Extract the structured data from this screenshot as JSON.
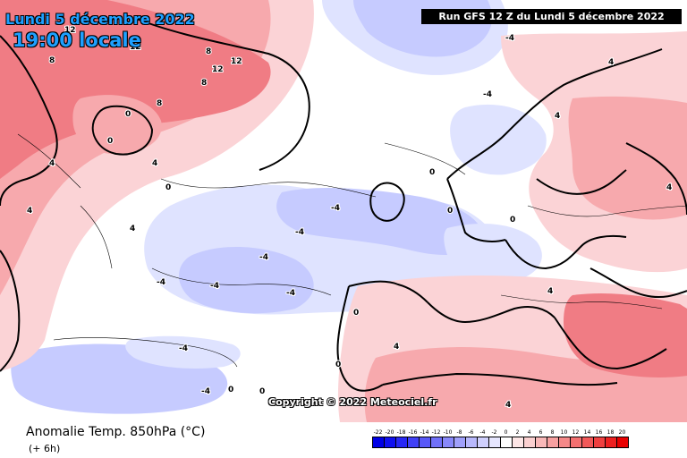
{
  "header": {
    "date_text": "Lundi 5 décembre 2022",
    "time_text": "19:00 locale",
    "run_text": "Run GFS 12 Z du Lundi 5 décembre 2022"
  },
  "map": {
    "copyright": "Copyright © 2022 Meteociel.fr",
    "contour_labels": [
      {
        "text": "-4"
      },
      {
        "text": "-4"
      },
      {
        "text": "-4"
      },
      {
        "text": "-4"
      },
      {
        "text": "-4"
      },
      {
        "text": "-4"
      },
      {
        "text": "-4"
      },
      {
        "text": "-4"
      },
      {
        "text": "-4"
      },
      {
        "text": "-4"
      },
      {
        "text": "0"
      },
      {
        "text": "0"
      },
      {
        "text": "0"
      },
      {
        "text": "0"
      },
      {
        "text": "0"
      },
      {
        "text": "0"
      },
      {
        "text": "0"
      },
      {
        "text": "0"
      },
      {
        "text": "0"
      },
      {
        "text": "0"
      },
      {
        "text": "4"
      },
      {
        "text": "4"
      },
      {
        "text": "4"
      },
      {
        "text": "4"
      },
      {
        "text": "4"
      },
      {
        "text": "4"
      },
      {
        "text": "4"
      },
      {
        "text": "4"
      },
      {
        "text": "4"
      },
      {
        "text": "4"
      },
      {
        "text": "8"
      },
      {
        "text": "8"
      },
      {
        "text": "8"
      },
      {
        "text": "8"
      },
      {
        "text": "12"
      },
      {
        "text": "12"
      },
      {
        "text": "12"
      },
      {
        "text": "12"
      }
    ],
    "colors": {
      "warm_light": "#fbd3d6",
      "warm_mid": "#f7a9ad",
      "warm_strong": "#f07c84",
      "cold_light": "#dfe3ff",
      "cold_mid": "#c6cbff",
      "cold_strong": "#aab0fb"
    }
  },
  "footer": {
    "title": "Anomalie Temp. 850hPa (°C)",
    "subtitle": "(+ 6h)"
  },
  "legend": {
    "labels": [
      "-22",
      "-20",
      "-18",
      "-16",
      "-14",
      "-12",
      "-10",
      "-8",
      "-6",
      "-4",
      "-2",
      "0",
      "2",
      "4",
      "6",
      "8",
      "10",
      "12",
      "14",
      "16",
      "18",
      "20"
    ],
    "colors": [
      "#0000e6",
      "#1010f0",
      "#2828f5",
      "#4040f7",
      "#5858f8",
      "#7070f9",
      "#8888fa",
      "#a0a0fb",
      "#b8b8fc",
      "#d0d0fd",
      "#e6e6fe",
      "#ffffff",
      "#fde6e6",
      "#fbd0d0",
      "#f9b8b8",
      "#f7a0a0",
      "#f58888",
      "#f37070",
      "#f15858",
      "#ef4040",
      "#ed2020",
      "#e80000"
    ]
  }
}
